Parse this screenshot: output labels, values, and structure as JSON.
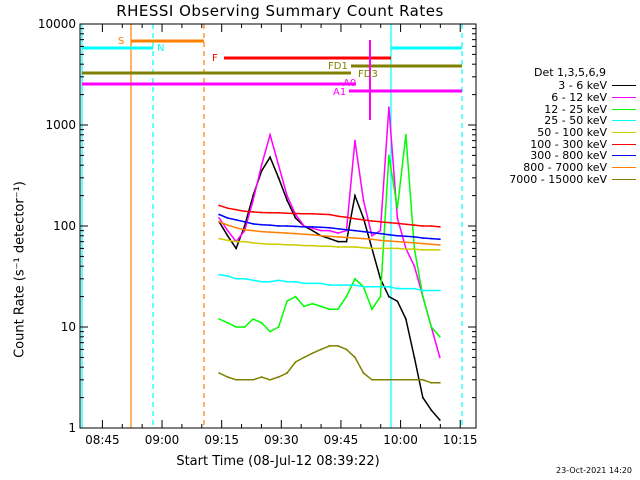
{
  "chart_data": {
    "type": "line",
    "title": "RHESSI Observing Summary Count Rates",
    "xlabel": "Start Time (08-Jul-12 08:39:22)",
    "ylabel": "Count Rate (s⁻¹ detector⁻¹)",
    "yscale": "log",
    "ylim": [
      1,
      10000
    ],
    "xlim": [
      "08:39:22",
      "10:19:00"
    ],
    "x_ticks": [
      "08:45",
      "09:00",
      "09:15",
      "09:30",
      "09:45",
      "10:00",
      "10:15"
    ],
    "y_ticks": [
      "1",
      "10",
      "100",
      "1000",
      "10000"
    ],
    "legend": {
      "title": "Det 1,3,5,6,9",
      "position": "right",
      "entries": [
        {
          "label": "3 - 6 keV",
          "color": "#000000"
        },
        {
          "label": "6 - 12 keV",
          "color": "#ff00ff"
        },
        {
          "label": "12 - 25 keV",
          "color": "#00ff00"
        },
        {
          "label": "25 - 50 keV",
          "color": "#00ffff"
        },
        {
          "label": "50 - 100 keV",
          "color": "#cccc00"
        },
        {
          "label": "100 - 300 keV",
          "color": "#ff0000"
        },
        {
          "label": "300 - 800 keV",
          "color": "#0000ff"
        },
        {
          "label": "800 - 7000 keV",
          "color": "#ff8000"
        },
        {
          "label": "7000 - 15000 keV",
          "color": "#808000"
        }
      ]
    },
    "x_minutes": [
      0,
      2,
      4,
      6,
      8,
      10,
      12,
      14,
      16,
      18,
      20,
      22,
      24,
      26,
      28,
      30,
      32,
      34,
      36,
      38,
      40,
      42,
      44,
      46,
      48,
      50,
      52
    ],
    "series": [
      {
        "name": "3 - 6 keV",
        "color": "#000000",
        "values": [
          110,
          80,
          60,
          100,
          200,
          350,
          480,
          300,
          180,
          120,
          100,
          90,
          80,
          75,
          70,
          70,
          200,
          120,
          60,
          30,
          20,
          18,
          12,
          5,
          2,
          1.5,
          1.2
        ]
      },
      {
        "name": "6 - 12 keV",
        "color": "#ff00ff",
        "values": [
          120,
          90,
          70,
          90,
          180,
          400,
          800,
          400,
          200,
          130,
          100,
          95,
          90,
          90,
          85,
          90,
          700,
          180,
          80,
          90,
          1500,
          120,
          60,
          40,
          20,
          10,
          5
        ]
      },
      {
        "name": "12 - 25 keV",
        "color": "#00ff00",
        "values": [
          12,
          11,
          10,
          10,
          12,
          11,
          9,
          10,
          18,
          20,
          16,
          17,
          16,
          15,
          15,
          20,
          30,
          25,
          15,
          20,
          500,
          150,
          800,
          60,
          20,
          10,
          8
        ]
      },
      {
        "name": "25 - 50 keV",
        "color": "#00ffff",
        "values": [
          33,
          32,
          30,
          30,
          29,
          28,
          28,
          29,
          28,
          28,
          27,
          27,
          27,
          26,
          26,
          26,
          26,
          25,
          25,
          25,
          25,
          24,
          24,
          24,
          23,
          23,
          23
        ]
      },
      {
        "name": "50 - 100 keV",
        "color": "#cccc00",
        "values": [
          75,
          72,
          70,
          70,
          68,
          67,
          66,
          66,
          65,
          65,
          64,
          64,
          63,
          63,
          62,
          62,
          62,
          61,
          60,
          60,
          60,
          60,
          59,
          59,
          58,
          58,
          58
        ]
      },
      {
        "name": "100 - 300 keV",
        "color": "#ff0000",
        "values": [
          160,
          150,
          145,
          140,
          138,
          136,
          135,
          135,
          134,
          133,
          132,
          132,
          131,
          130,
          125,
          122,
          118,
          115,
          112,
          110,
          108,
          106,
          104,
          102,
          100,
          100,
          98
        ]
      },
      {
        "name": "300 - 800 keV",
        "color": "#0000ff",
        "values": [
          130,
          120,
          115,
          110,
          105,
          103,
          102,
          100,
          100,
          99,
          98,
          98,
          97,
          96,
          94,
          92,
          90,
          88,
          86,
          84,
          82,
          80,
          79,
          78,
          76,
          75,
          74
        ]
      },
      {
        "name": "800 - 7000 keV",
        "color": "#ff8000",
        "values": [
          110,
          102,
          96,
          92,
          90,
          88,
          87,
          86,
          85,
          84,
          83,
          82,
          80,
          79,
          78,
          77,
          76,
          75,
          74,
          72,
          71,
          70,
          69,
          68,
          67,
          66,
          65
        ]
      },
      {
        "name": "7000 - 15000 keV",
        "color": "#808000",
        "values": [
          3.5,
          3.2,
          3.0,
          3.0,
          3.0,
          3.2,
          3.0,
          3.2,
          3.5,
          4.5,
          5.0,
          5.5,
          6.0,
          6.5,
          6.5,
          6.0,
          5.0,
          3.5,
          3.0,
          3.0,
          3.0,
          3.0,
          3.0,
          3.0,
          3.0,
          2.8,
          2.8
        ]
      }
    ],
    "annotations": [
      {
        "label": "S",
        "color": "#ff8000"
      },
      {
        "label": "N",
        "color": "#00ffff"
      },
      {
        "label": "F",
        "color": "#ff0000"
      },
      {
        "label": "FD1",
        "color": "#808000"
      },
      {
        "label": "FD3",
        "color": "#808000"
      },
      {
        "label": "A0",
        "color": "#ff00ff"
      },
      {
        "label": "A1",
        "color": "#ff00ff"
      }
    ],
    "grid": false
  },
  "footer": {
    "timestamp": "23-Oct-2021 14:20"
  }
}
